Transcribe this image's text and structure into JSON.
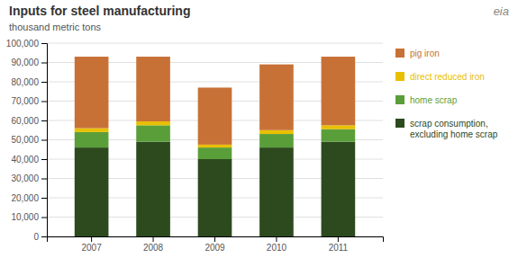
{
  "chart_data": {
    "type": "bar",
    "stacked": true,
    "title": "Inputs for steel manufacturing",
    "subtitle": "thousand  metric tons",
    "annotations": [
      "eia"
    ],
    "categories": [
      "2007",
      "2008",
      "2009",
      "2010",
      "2011"
    ],
    "series": [
      {
        "name": "scrap consumption,\nexcluding home scrap",
        "color": "#2d4a1e",
        "values": [
          46000,
          49000,
          40000,
          46000,
          49000
        ]
      },
      {
        "name": "home scrap",
        "color": "#5a9e3a",
        "values": [
          8000,
          8500,
          6000,
          7000,
          6500
        ]
      },
      {
        "name": "direct reduced  iron",
        "color": "#e8c000",
        "values": [
          2000,
          2000,
          1500,
          2000,
          2000
        ]
      },
      {
        "name": "pig iron",
        "color": "#c87137",
        "values": [
          37000,
          33500,
          29500,
          34000,
          35500
        ]
      }
    ],
    "ylim": [
      0,
      100000
    ],
    "yticks": [
      0,
      {
        "value": 10000,
        "label": "10,000"
      },
      {
        "value": 20000,
        "label": "20,000"
      },
      {
        "value": 30000,
        "label": "30,000"
      },
      {
        "value": 40000,
        "label": "40,000"
      },
      {
        "value": 50000,
        "label": "50,000"
      },
      {
        "value": 60000,
        "label": "60,000"
      },
      {
        "value": 70000,
        "label": "70,000"
      },
      {
        "value": 80000,
        "label": "80,000"
      },
      {
        "value": 90000,
        "label": "90,000"
      },
      {
        "value": 100000,
        "label": "100,000"
      }
    ],
    "grid": true,
    "legend": "right"
  }
}
